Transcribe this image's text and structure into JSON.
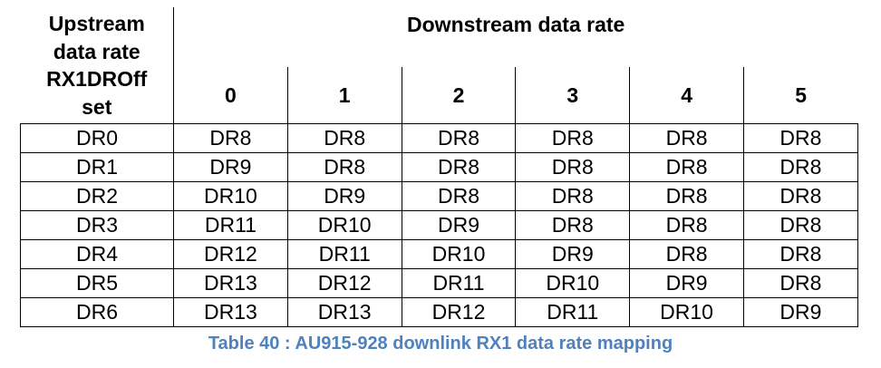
{
  "table": {
    "upstream_header": [
      "Upstream",
      "data rate",
      "RX1DROff",
      "set"
    ],
    "downstream_header": "Downstream data rate",
    "columns": [
      "0",
      "1",
      "2",
      "3",
      "4",
      "5"
    ],
    "rows": [
      {
        "label": "DR0",
        "cells": [
          "DR8",
          "DR8",
          "DR8",
          "DR8",
          "DR8",
          "DR8"
        ]
      },
      {
        "label": "DR1",
        "cells": [
          "DR9",
          "DR8",
          "DR8",
          "DR8",
          "DR8",
          "DR8"
        ]
      },
      {
        "label": "DR2",
        "cells": [
          "DR10",
          "DR9",
          "DR8",
          "DR8",
          "DR8",
          "DR8"
        ]
      },
      {
        "label": "DR3",
        "cells": [
          "DR11",
          "DR10",
          "DR9",
          "DR8",
          "DR8",
          "DR8"
        ]
      },
      {
        "label": "DR4",
        "cells": [
          "DR12",
          "DR11",
          "DR10",
          "DR9",
          "DR8",
          "DR8"
        ]
      },
      {
        "label": "DR5",
        "cells": [
          "DR13",
          "DR12",
          "DR11",
          "DR10",
          "DR9",
          "DR8"
        ]
      },
      {
        "label": "DR6",
        "cells": [
          "DR13",
          "DR13",
          "DR12",
          "DR11",
          "DR10",
          "DR9"
        ]
      }
    ]
  },
  "caption": "Table 40 : AU915-928 downlink RX1 data rate mapping",
  "colors": {
    "caption": "#4f81bd"
  }
}
